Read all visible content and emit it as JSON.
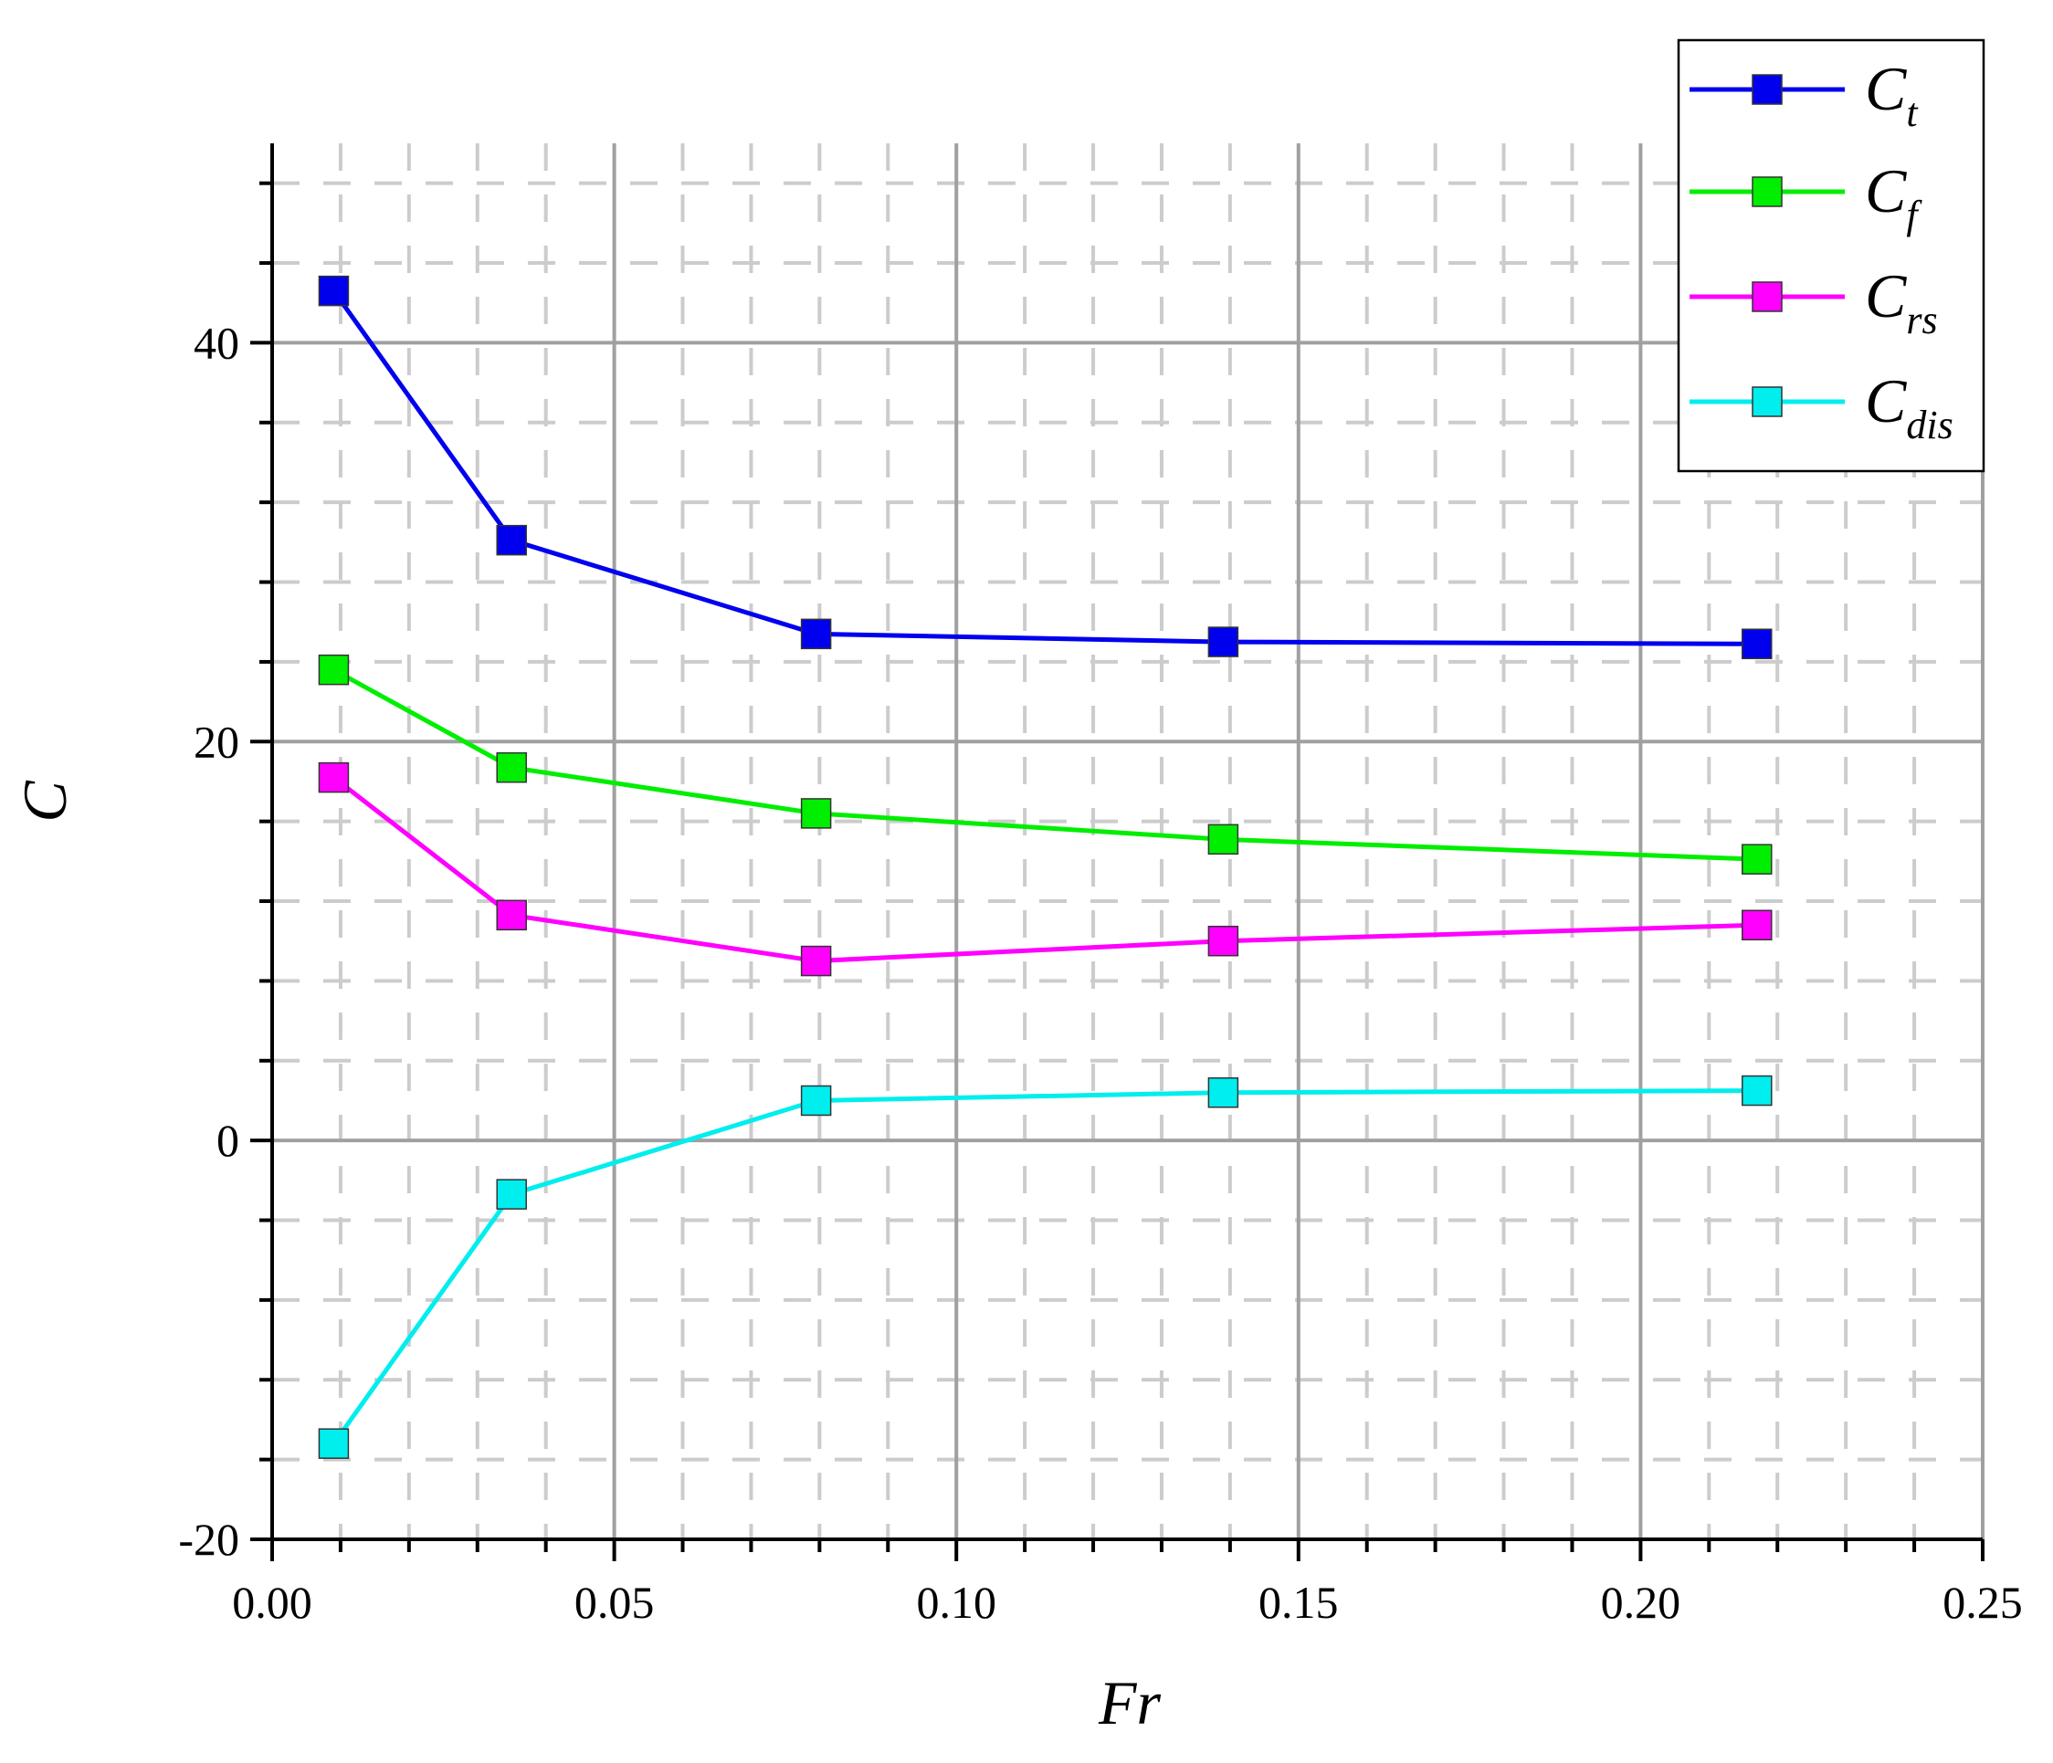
{
  "chart_data": {
    "type": "line",
    "xlabel": "Fr",
    "ylabel": "C",
    "xlim": [
      0.0,
      0.25
    ],
    "ylim": [
      -20,
      50
    ],
    "xticks": [
      0.0,
      0.05,
      0.1,
      0.15,
      0.2,
      0.25
    ],
    "xtick_labels": [
      "0.00",
      "0.05",
      "0.10",
      "0.15",
      "0.20",
      "0.25"
    ],
    "yticks": [
      -20,
      0,
      20,
      40
    ],
    "ytick_labels": [
      "-20",
      "0",
      "20",
      "40"
    ],
    "grid": "major solid, minor dashed",
    "legend_position": "top-right",
    "x": [
      0.009,
      0.035,
      0.0795,
      0.139,
      0.217
    ],
    "series": [
      {
        "key": "Ct",
        "name_main": "C",
        "name_sub": "t",
        "color": "#0000ee",
        "values": [
          42.6,
          30.1,
          25.4,
          25.0,
          24.9
        ]
      },
      {
        "key": "Cf",
        "name_main": "C",
        "name_sub": "f",
        "color": "#00ee00",
        "values": [
          23.6,
          18.7,
          16.4,
          15.1,
          14.1
        ]
      },
      {
        "key": "Crs",
        "name_main": "C",
        "name_sub": "rs",
        "color": "#ff00ff",
        "values": [
          18.2,
          11.3,
          9.0,
          10.0,
          10.8
        ]
      },
      {
        "key": "Cdis",
        "name_main": "C",
        "name_sub": "dis",
        "color": "#00eeee",
        "values": [
          -15.2,
          -2.7,
          2.0,
          2.4,
          2.5
        ]
      }
    ]
  }
}
